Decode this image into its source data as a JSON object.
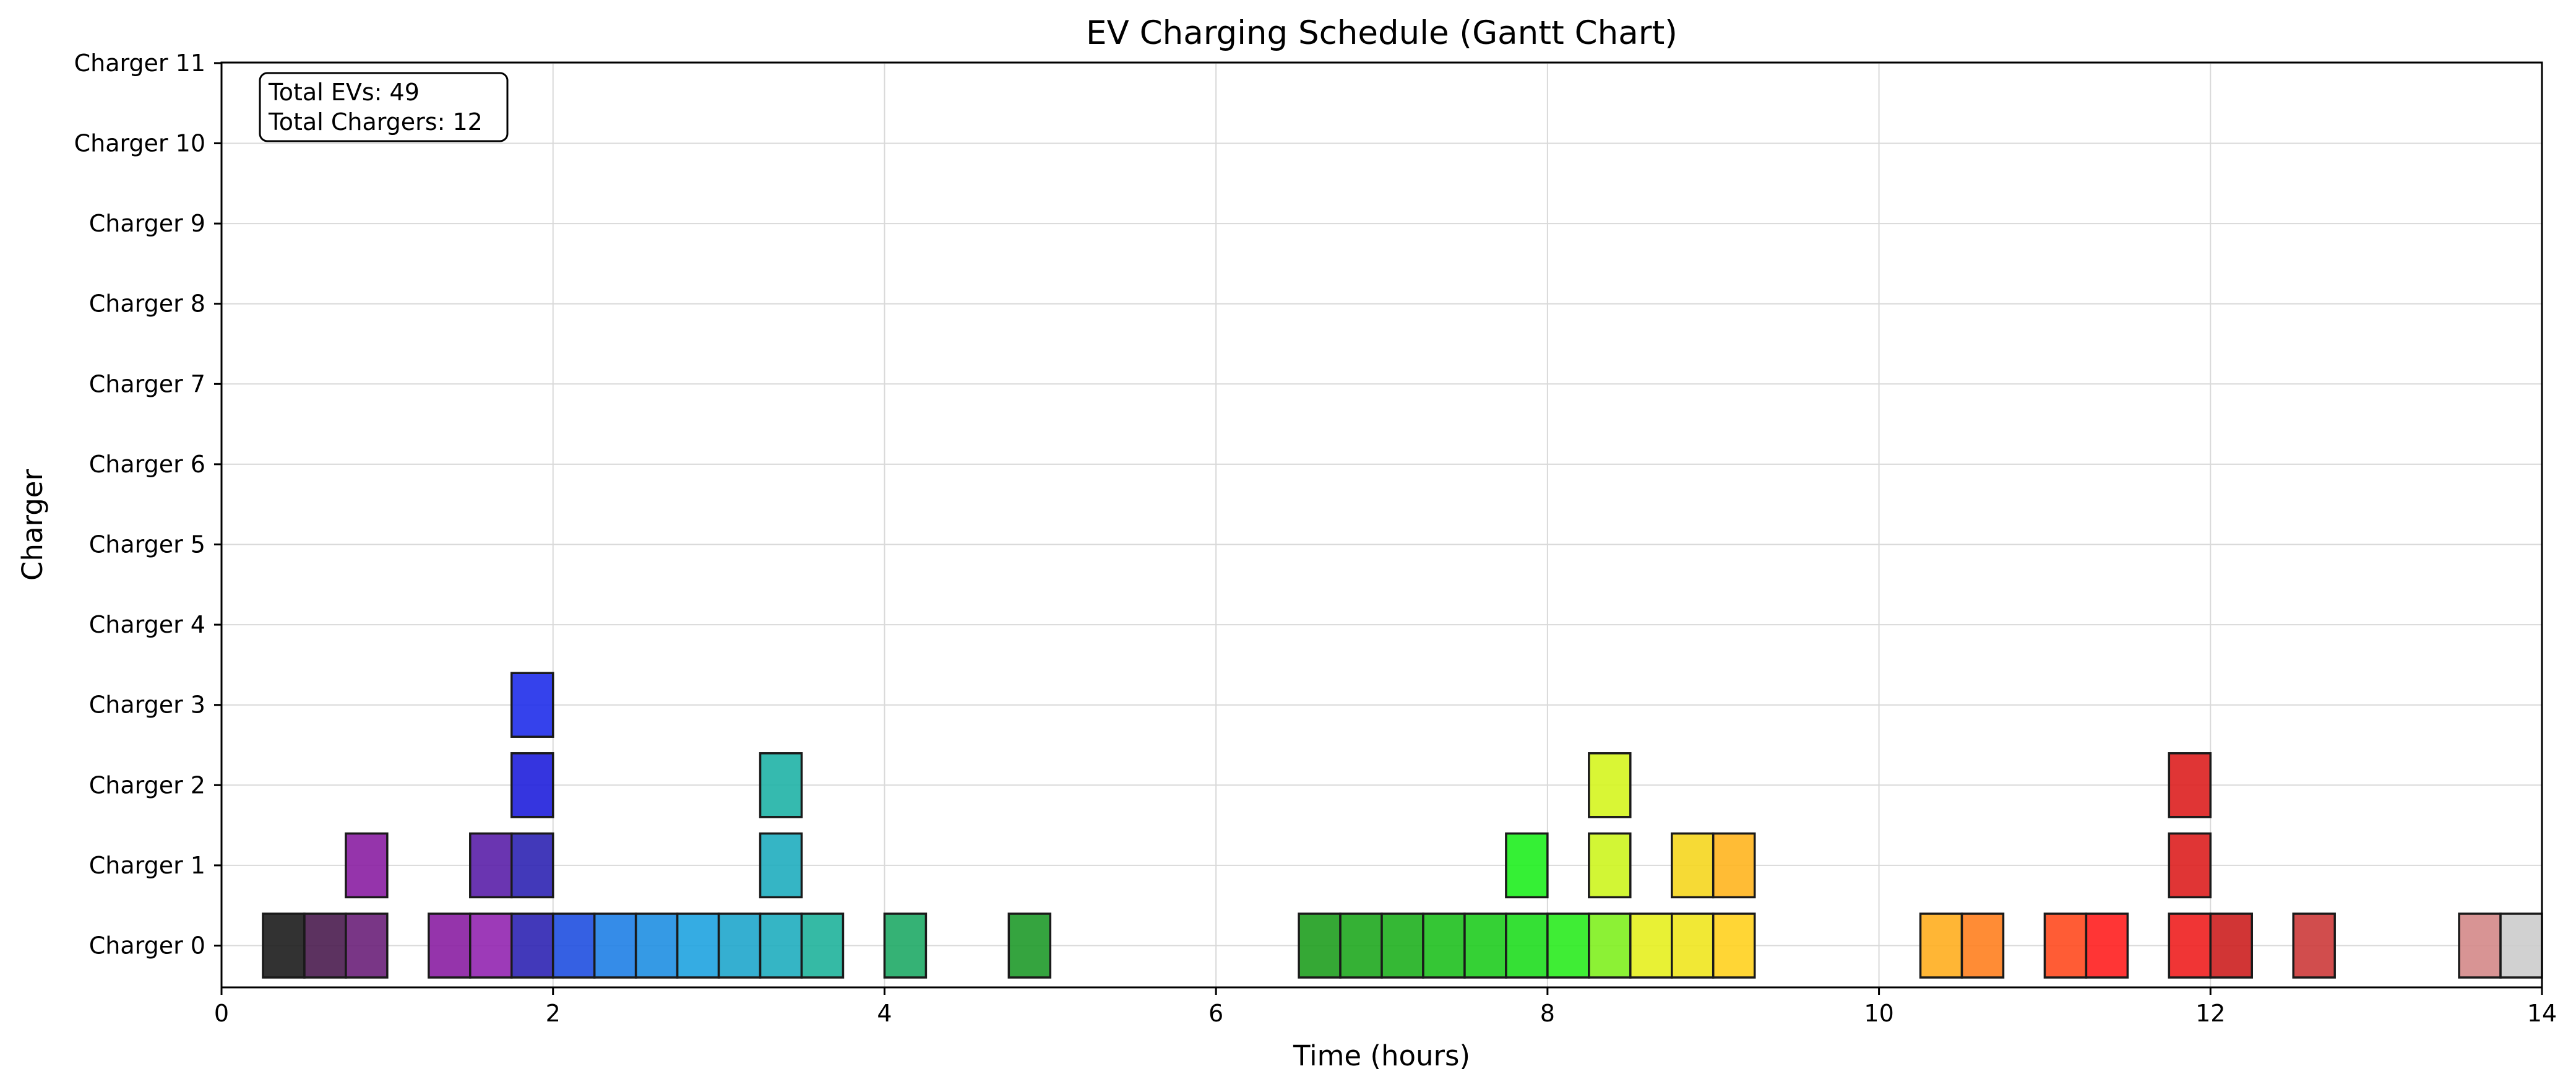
{
  "chart_data": {
    "type": "gantt",
    "title": "EV Charging Schedule (Gantt Chart)",
    "xlabel": "Time (hours)",
    "ylabel": "Charger",
    "xlim": [
      0,
      14
    ],
    "x_ticks": [
      0,
      2,
      4,
      6,
      8,
      10,
      12,
      14
    ],
    "x_tick_labels": [
      "0",
      "2",
      "4",
      "6",
      "8",
      "10",
      "12",
      "14"
    ],
    "y_categories": [
      "Charger 0",
      "Charger 1",
      "Charger 2",
      "Charger 3",
      "Charger 4",
      "Charger 5",
      "Charger 6",
      "Charger 7",
      "Charger 8",
      "Charger 9",
      "Charger 10",
      "Charger 11"
    ],
    "grid": true,
    "info_box": {
      "position": "top-left",
      "lines": [
        "Total EVs: 49",
        "Total Chargers: 12"
      ]
    },
    "tasks": [
      {
        "charger": 0,
        "start": 0.25,
        "end": 0.5,
        "color": "#1c1c1c"
      },
      {
        "charger": 0,
        "start": 0.5,
        "end": 0.75,
        "color": "#4a1c4f"
      },
      {
        "charger": 0,
        "start": 0.75,
        "end": 1.0,
        "color": "#6a2079"
      },
      {
        "charger": 0,
        "start": 1.25,
        "end": 1.5,
        "color": "#8a1ea2"
      },
      {
        "charger": 0,
        "start": 1.5,
        "end": 1.75,
        "color": "#9225b0"
      },
      {
        "charger": 0,
        "start": 1.75,
        "end": 2.0,
        "color": "#2d23b3"
      },
      {
        "charger": 0,
        "start": 2.0,
        "end": 2.25,
        "color": "#1f4fe0"
      },
      {
        "charger": 0,
        "start": 2.25,
        "end": 2.5,
        "color": "#1f7fe5"
      },
      {
        "charger": 0,
        "start": 2.5,
        "end": 2.75,
        "color": "#1f8fe2"
      },
      {
        "charger": 0,
        "start": 2.75,
        "end": 3.0,
        "color": "#1fa3e0"
      },
      {
        "charger": 0,
        "start": 3.0,
        "end": 3.25,
        "color": "#1fa6cc"
      },
      {
        "charger": 0,
        "start": 3.25,
        "end": 3.5,
        "color": "#1fadbf"
      },
      {
        "charger": 0,
        "start": 3.5,
        "end": 3.75,
        "color": "#1fb39b"
      },
      {
        "charger": 0,
        "start": 4.0,
        "end": 4.25,
        "color": "#1faa66"
      },
      {
        "charger": 0,
        "start": 4.75,
        "end": 5.0,
        "color": "#1f9a2a"
      },
      {
        "charger": 0,
        "start": 6.5,
        "end": 6.75,
        "color": "#1f9f1f"
      },
      {
        "charger": 0,
        "start": 6.75,
        "end": 7.0,
        "color": "#1fa81f"
      },
      {
        "charger": 0,
        "start": 7.0,
        "end": 7.25,
        "color": "#1fb01f"
      },
      {
        "charger": 0,
        "start": 7.25,
        "end": 7.5,
        "color": "#1fc01f"
      },
      {
        "charger": 0,
        "start": 7.5,
        "end": 7.75,
        "color": "#1fcc1f"
      },
      {
        "charger": 0,
        "start": 7.75,
        "end": 8.0,
        "color": "#1fdd1f"
      },
      {
        "charger": 0,
        "start": 8.0,
        "end": 8.25,
        "color": "#2aeb1f"
      },
      {
        "charger": 0,
        "start": 8.25,
        "end": 8.5,
        "color": "#80f01f"
      },
      {
        "charger": 0,
        "start": 8.5,
        "end": 8.75,
        "color": "#e5f01f"
      },
      {
        "charger": 0,
        "start": 8.75,
        "end": 9.0,
        "color": "#f0e51f"
      },
      {
        "charger": 0,
        "start": 9.0,
        "end": 9.25,
        "color": "#ffd21f"
      },
      {
        "charger": 0,
        "start": 10.25,
        "end": 10.5,
        "color": "#ffae1f"
      },
      {
        "charger": 0,
        "start": 10.5,
        "end": 10.75,
        "color": "#ff801f"
      },
      {
        "charger": 0,
        "start": 11.0,
        "end": 11.25,
        "color": "#ff4a1f"
      },
      {
        "charger": 0,
        "start": 11.25,
        "end": 11.5,
        "color": "#ff1f1f"
      },
      {
        "charger": 0,
        "start": 11.75,
        "end": 12.0,
        "color": "#ee1f1f"
      },
      {
        "charger": 0,
        "start": 12.0,
        "end": 12.25,
        "color": "#cc1f1f"
      },
      {
        "charger": 0,
        "start": 12.5,
        "end": 12.75,
        "color": "#cc3a3a"
      },
      {
        "charger": 0,
        "start": 13.5,
        "end": 13.75,
        "color": "#d48888"
      },
      {
        "charger": 0,
        "start": 13.75,
        "end": 14.0,
        "color": "#cccccc"
      },
      {
        "charger": 1,
        "start": 0.75,
        "end": 1.0,
        "color": "#8a1ea2"
      },
      {
        "charger": 1,
        "start": 1.5,
        "end": 1.75,
        "color": "#5a1fa8"
      },
      {
        "charger": 1,
        "start": 1.75,
        "end": 2.0,
        "color": "#2d23b3"
      },
      {
        "charger": 1,
        "start": 3.25,
        "end": 3.5,
        "color": "#1fadbf"
      },
      {
        "charger": 1,
        "start": 7.75,
        "end": 8.0,
        "color": "#1fee1f"
      },
      {
        "charger": 1,
        "start": 8.25,
        "end": 8.5,
        "color": "#cdf51f"
      },
      {
        "charger": 1,
        "start": 8.75,
        "end": 9.0,
        "color": "#f5d61f"
      },
      {
        "charger": 1,
        "start": 9.0,
        "end": 9.25,
        "color": "#ffb51f"
      },
      {
        "charger": 1,
        "start": 11.75,
        "end": 12.0,
        "color": "#dd1f1f"
      },
      {
        "charger": 2,
        "start": 1.75,
        "end": 2.0,
        "color": "#1f1fdc"
      },
      {
        "charger": 2,
        "start": 3.25,
        "end": 3.5,
        "color": "#1fb3a6"
      },
      {
        "charger": 2,
        "start": 8.25,
        "end": 8.5,
        "color": "#d5f51f"
      },
      {
        "charger": 2,
        "start": 11.75,
        "end": 12.0,
        "color": "#dd1f1f"
      },
      {
        "charger": 3,
        "start": 1.75,
        "end": 2.0,
        "color": "#1f2eea"
      }
    ]
  }
}
